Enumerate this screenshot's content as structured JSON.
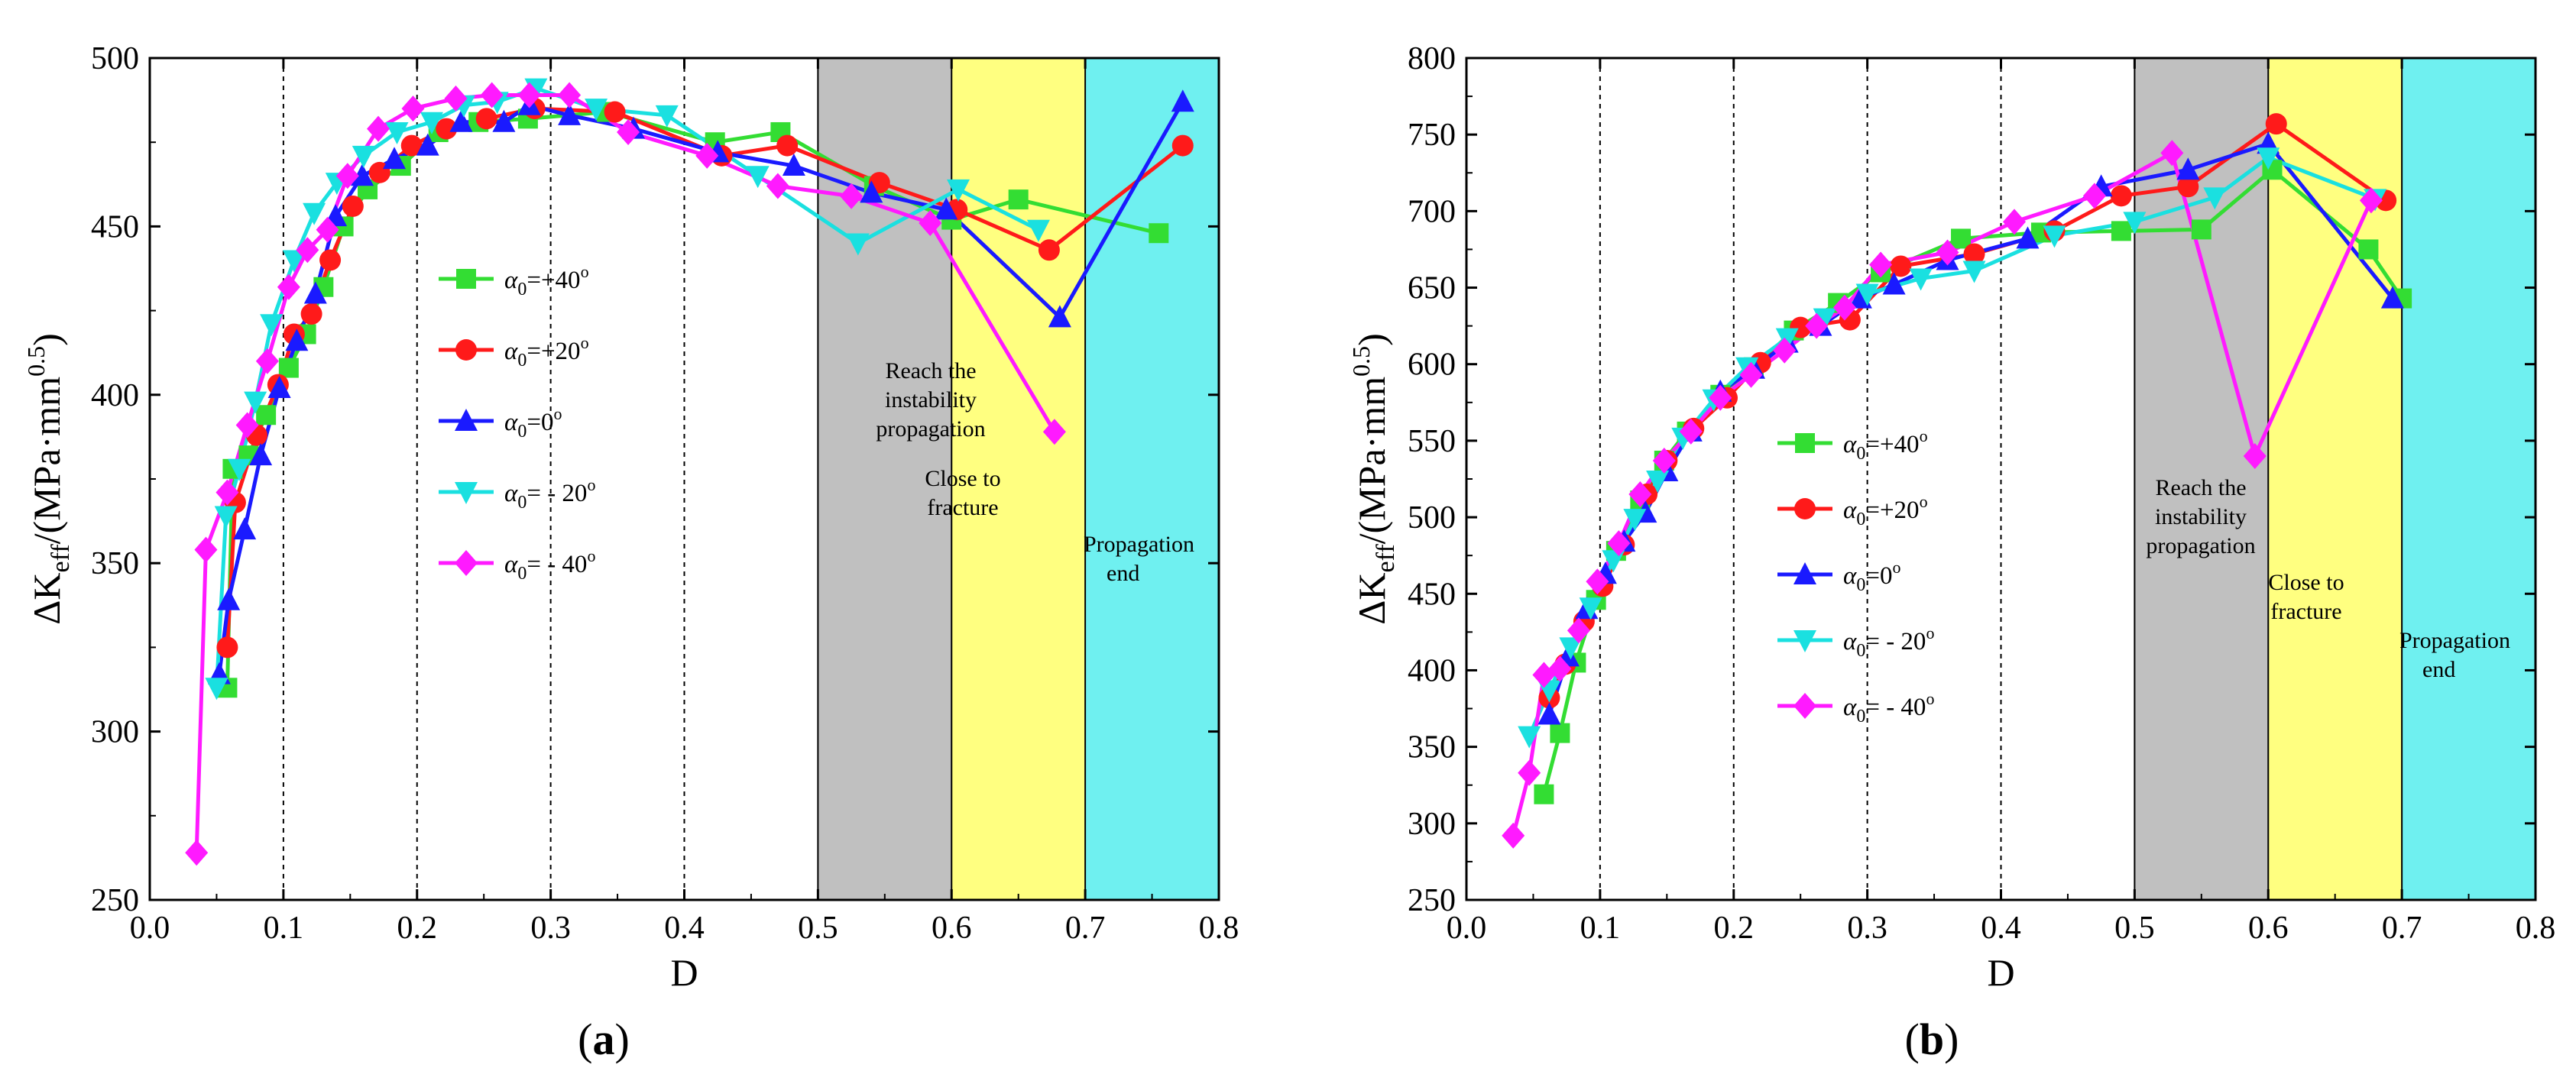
{
  "chart_data": [
    {
      "type": "line",
      "panel_label": "(a)",
      "xlabel": "D",
      "ylabel": "ΔKeff/(MPa·mm0.5)",
      "xlim": [
        0.0,
        0.8
      ],
      "ylim": [
        250,
        500
      ],
      "xticks": [
        "0.0",
        "0.1",
        "0.2",
        "0.3",
        "0.4",
        "0.5",
        "0.6",
        "0.7",
        "0.8"
      ],
      "yticks": [
        "250",
        "300",
        "350",
        "400",
        "450",
        "500"
      ],
      "gridlines_x": [
        0.1,
        0.2,
        0.3,
        0.4
      ],
      "legend_position": "center-left",
      "zones": [
        {
          "from": 0.5,
          "to": 0.6,
          "color": "#c0c0c0",
          "lines": [
            "Reach the",
            "instability",
            "propagation"
          ]
        },
        {
          "from": 0.6,
          "to": 0.7,
          "color": "#ffff80",
          "lines": [
            "Close to",
            "fracture"
          ]
        },
        {
          "from": 0.7,
          "to": 0.8,
          "color": "#6ff0f0",
          "lines": [
            "Propagation",
            "end"
          ]
        }
      ],
      "series": [
        {
          "name": "α0=+40°",
          "label_main": "α",
          "label_sub": "0",
          "label_rest": "=+40",
          "label_sup": "o",
          "color": "#33dd33",
          "marker": "square",
          "x": [
            0.058,
            0.062,
            0.074,
            0.087,
            0.104,
            0.117,
            0.13,
            0.145,
            0.163,
            0.188,
            0.216,
            0.246,
            0.283,
            0.342,
            0.423,
            0.472,
            0.542,
            0.6,
            0.65,
            0.755
          ],
          "y": [
            313,
            378,
            382,
            394,
            408,
            418,
            432,
            450,
            461,
            468,
            478,
            481,
            482,
            484,
            475,
            478,
            462,
            452,
            458,
            448
          ]
        },
        {
          "name": "α0=+20°",
          "label_main": "α",
          "label_sub": "0",
          "label_rest": "=+20",
          "label_sup": "o",
          "color": "#ff1a1a",
          "marker": "circle",
          "x": [
            0.058,
            0.064,
            0.08,
            0.096,
            0.108,
            0.121,
            0.135,
            0.152,
            0.172,
            0.196,
            0.222,
            0.252,
            0.288,
            0.348,
            0.428,
            0.477,
            0.546,
            0.604,
            0.673,
            0.773
          ],
          "y": [
            325,
            368,
            388,
            403,
            418,
            424,
            440,
            456,
            466,
            474,
            479,
            482,
            485,
            484,
            471,
            474,
            463,
            455,
            443,
            474
          ]
        },
        {
          "name": "α0=0°",
          "label_main": "α",
          "label_sub": "0",
          "label_rest": "=0",
          "label_sup": "o",
          "color": "#1a1aff",
          "marker": "triangle",
          "x": [
            0.052,
            0.059,
            0.071,
            0.083,
            0.097,
            0.11,
            0.124,
            0.139,
            0.159,
            0.183,
            0.208,
            0.233,
            0.265,
            0.284,
            0.314,
            0.362,
            0.425,
            0.482,
            0.54,
            0.596,
            0.681,
            0.773
          ],
          "y": [
            317,
            339,
            360,
            382,
            402,
            416,
            430,
            453,
            465,
            470,
            474,
            481,
            481,
            486,
            483,
            479,
            472,
            468,
            460,
            455,
            423,
            487
          ]
        },
        {
          "name": "α0= - 20°",
          "label_main": "α",
          "label_sub": "0",
          "label_rest": "= - 20",
          "label_sup": "o",
          "color": "#1ae0e0",
          "marker": "triangle-down",
          "x": [
            0.05,
            0.057,
            0.067,
            0.079,
            0.091,
            0.108,
            0.123,
            0.14,
            0.16,
            0.185,
            0.211,
            0.235,
            0.26,
            0.289,
            0.334,
            0.387,
            0.455,
            0.53,
            0.605,
            0.665
          ],
          "y": [
            313,
            364,
            378,
            398,
            421,
            440,
            454,
            463,
            471,
            478,
            481,
            486,
            487,
            491,
            485,
            483,
            465,
            445,
            461,
            449
          ]
        },
        {
          "name": "α0= - 40°",
          "label_main": "α",
          "label_sub": "0",
          "label_rest": "= - 40",
          "label_sup": "o",
          "color": "#ff1aff",
          "marker": "diamond",
          "x": [
            0.035,
            0.042,
            0.058,
            0.073,
            0.088,
            0.104,
            0.118,
            0.133,
            0.148,
            0.171,
            0.197,
            0.229,
            0.256,
            0.284,
            0.314,
            0.358,
            0.417,
            0.47,
            0.525,
            0.584,
            0.677
          ],
          "y": [
            264,
            354,
            371,
            391,
            410,
            432,
            443,
            449,
            465,
            479,
            485,
            488,
            489,
            489,
            489,
            478,
            471,
            462,
            459,
            451,
            389
          ]
        }
      ]
    },
    {
      "type": "line",
      "panel_label": "(b)",
      "xlabel": "D",
      "ylabel": "ΔKeff/(MPa·mm0.5)",
      "xlim": [
        0.0,
        0.8
      ],
      "ylim": [
        250,
        800
      ],
      "xticks": [
        "0.0",
        "0.1",
        "0.2",
        "0.3",
        "0.4",
        "0.5",
        "0.6",
        "0.7",
        "0.8"
      ],
      "yticks": [
        "250",
        "300",
        "350",
        "400",
        "450",
        "500",
        "550",
        "600",
        "650",
        "700",
        "750",
        "800"
      ],
      "gridlines_x": [
        0.1,
        0.2,
        0.3,
        0.4
      ],
      "legend_position": "center-left",
      "zones": [
        {
          "from": 0.5,
          "to": 0.6,
          "color": "#c0c0c0",
          "lines": [
            "Reach the",
            "instability",
            "propagation"
          ]
        },
        {
          "from": 0.6,
          "to": 0.7,
          "color": "#ffff80",
          "lines": [
            "Close to",
            "fracture"
          ]
        },
        {
          "from": 0.7,
          "to": 0.8,
          "color": "#6ff0f0",
          "lines": [
            "Propagation",
            "end"
          ]
        }
      ],
      "series": [
        {
          "name": "α0=+40°",
          "label_main": "α",
          "label_sub": "0",
          "label_rest": "=+40",
          "label_sup": "o",
          "color": "#33dd33",
          "marker": "square",
          "x": [
            0.058,
            0.07,
            0.082,
            0.097,
            0.112,
            0.13,
            0.148,
            0.165,
            0.19,
            0.215,
            0.245,
            0.278,
            0.31,
            0.37,
            0.43,
            0.49,
            0.55,
            0.603,
            0.675,
            0.7
          ],
          "y": [
            319,
            359,
            405,
            446,
            478,
            511,
            537,
            556,
            580,
            598,
            622,
            640,
            660,
            682,
            686,
            687,
            688,
            727,
            675,
            643
          ]
        },
        {
          "name": "α0=+20°",
          "label_main": "α",
          "label_sub": "0",
          "label_rest": "=+20",
          "label_sup": "o",
          "color": "#ff1a1a",
          "marker": "circle",
          "x": [
            0.062,
            0.074,
            0.088,
            0.102,
            0.118,
            0.135,
            0.15,
            0.17,
            0.195,
            0.22,
            0.25,
            0.287,
            0.325,
            0.38,
            0.44,
            0.49,
            0.54,
            0.606,
            0.688
          ],
          "y": [
            382,
            404,
            432,
            455,
            482,
            515,
            537,
            558,
            578,
            601,
            624,
            629,
            664,
            672,
            687,
            710,
            716,
            757,
            707
          ]
        },
        {
          "name": "α0=0°",
          "label_main": "α",
          "label_sub": "0",
          "label_rest": "=0",
          "label_sup": "o",
          "color": "#1a1aff",
          "marker": "triangle",
          "x": [
            0.062,
            0.076,
            0.09,
            0.104,
            0.118,
            0.134,
            0.15,
            0.168,
            0.19,
            0.215,
            0.24,
            0.265,
            0.295,
            0.32,
            0.36,
            0.42,
            0.475,
            0.54,
            0.6,
            0.693
          ],
          "y": [
            371,
            409,
            440,
            463,
            484,
            503,
            530,
            556,
            582,
            597,
            614,
            625,
            643,
            652,
            668,
            682,
            716,
            727,
            744,
            643
          ]
        },
        {
          "name": "α0= - 20°",
          "label_main": "α",
          "label_sub": "0",
          "label_rest": "= - 20",
          "label_sup": "o",
          "color": "#1ae0e0",
          "marker": "triangle-down",
          "x": [
            0.047,
            0.062,
            0.078,
            0.093,
            0.11,
            0.126,
            0.143,
            0.162,
            0.185,
            0.21,
            0.24,
            0.268,
            0.3,
            0.34,
            0.38,
            0.44,
            0.5,
            0.56,
            0.6,
            0.68
          ],
          "y": [
            357,
            387,
            415,
            441,
            472,
            499,
            524,
            552,
            577,
            598,
            617,
            630,
            646,
            656,
            661,
            684,
            693,
            709,
            735,
            708
          ]
        },
        {
          "name": "α0= - 40°",
          "label_main": "α",
          "label_sub": "0",
          "label_rest": "= - 40",
          "label_sup": "o",
          "color": "#ff1aff",
          "marker": "diamond",
          "x": [
            0.035,
            0.047,
            0.058,
            0.07,
            0.084,
            0.098,
            0.114,
            0.13,
            0.148,
            0.168,
            0.19,
            0.213,
            0.238,
            0.262,
            0.283,
            0.31,
            0.36,
            0.41,
            0.47,
            0.528,
            0.59,
            0.677
          ],
          "y": [
            292,
            333,
            397,
            401,
            426,
            458,
            483,
            515,
            537,
            556,
            578,
            593,
            609,
            625,
            637,
            665,
            673,
            693,
            710,
            738,
            540,
            707
          ]
        }
      ]
    }
  ]
}
